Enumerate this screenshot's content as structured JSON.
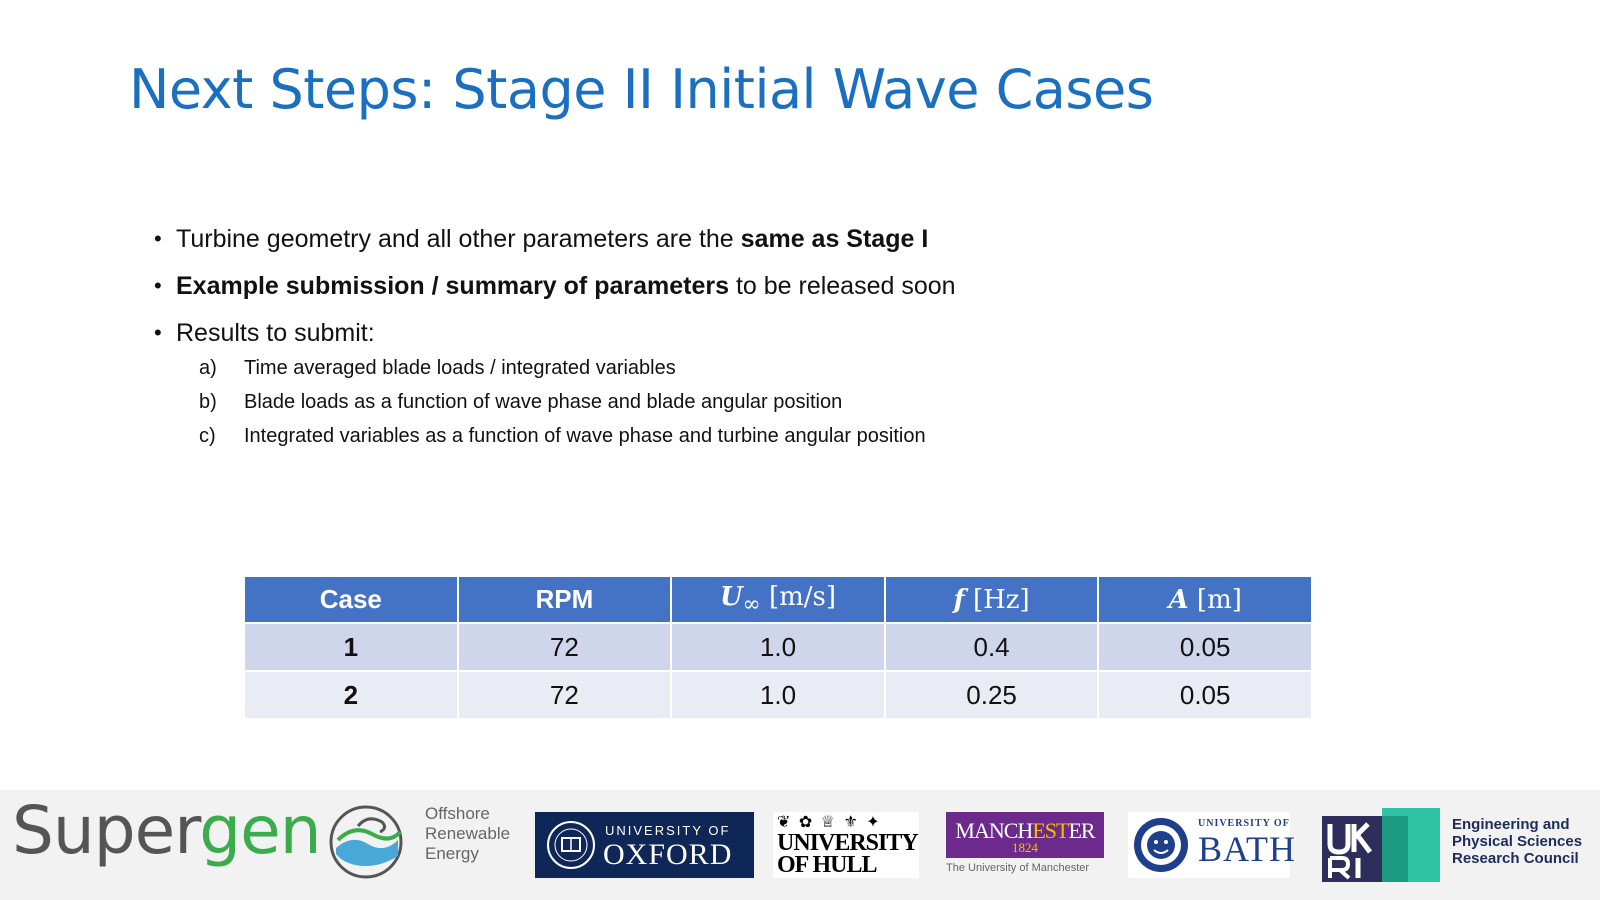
{
  "slide": {
    "title": "Next Steps: Stage II Initial Wave Cases"
  },
  "bullets": [
    {
      "pre": "Turbine geometry and all other parameters are the ",
      "bold": "same as Stage I",
      "post": ""
    },
    {
      "pre": "",
      "bold": "Example submission / summary of parameters",
      "post": " to be released soon"
    },
    {
      "pre": "Results to submit:",
      "bold": "",
      "post": ""
    }
  ],
  "subitems": [
    {
      "marker": "a)",
      "text": "Time averaged blade loads / integrated variables"
    },
    {
      "marker": "b)",
      "text": "Blade loads as a function of wave phase and blade angular position"
    },
    {
      "marker": "c)",
      "text": "Integrated variables as a function of wave phase and turbine angular position"
    }
  ],
  "table": {
    "headers": {
      "case": "Case",
      "rpm": "RPM",
      "u_sym": "U",
      "u_sub": "∞",
      "u_unit": " [m/s]",
      "f_sym": "f",
      "f_unit": " [Hz]",
      "a_sym": "A",
      "a_unit": " [m]"
    },
    "rows": [
      {
        "case": "1",
        "rpm": "72",
        "u": "1.0",
        "f": "0.4",
        "a": "0.05"
      },
      {
        "case": "2",
        "rpm": "72",
        "u": "1.0",
        "f": "0.25",
        "a": "0.05"
      }
    ]
  },
  "footer": {
    "supergen_a": "Super",
    "supergen_b": "gen",
    "offshore": [
      "Offshore",
      "Renewable",
      "Energy"
    ],
    "oxford": {
      "line1": "UNIVERSITY OF",
      "line2": "OXFORD"
    },
    "hull": {
      "line1": "UNIVERSITY",
      "line2": "OF HULL",
      "icons": "❦ ✿ ♕ ⚜ ✦"
    },
    "manchester": {
      "pre": "MANCH",
      "est": "EST",
      "post": "ER",
      "year": "1824",
      "sub": "The University of Manchester"
    },
    "bath": {
      "line1": "UNIVERSITY OF",
      "line2": "BATH"
    },
    "epsrc": [
      "Engineering and",
      "Physical Sciences",
      "Research Council"
    ]
  },
  "colors": {
    "title": "#1b6fc0",
    "table_header": "#4472c4",
    "row_odd": "#cfd5ea",
    "row_even": "#e9ebf5",
    "supergen_green": "#3aac4c"
  }
}
